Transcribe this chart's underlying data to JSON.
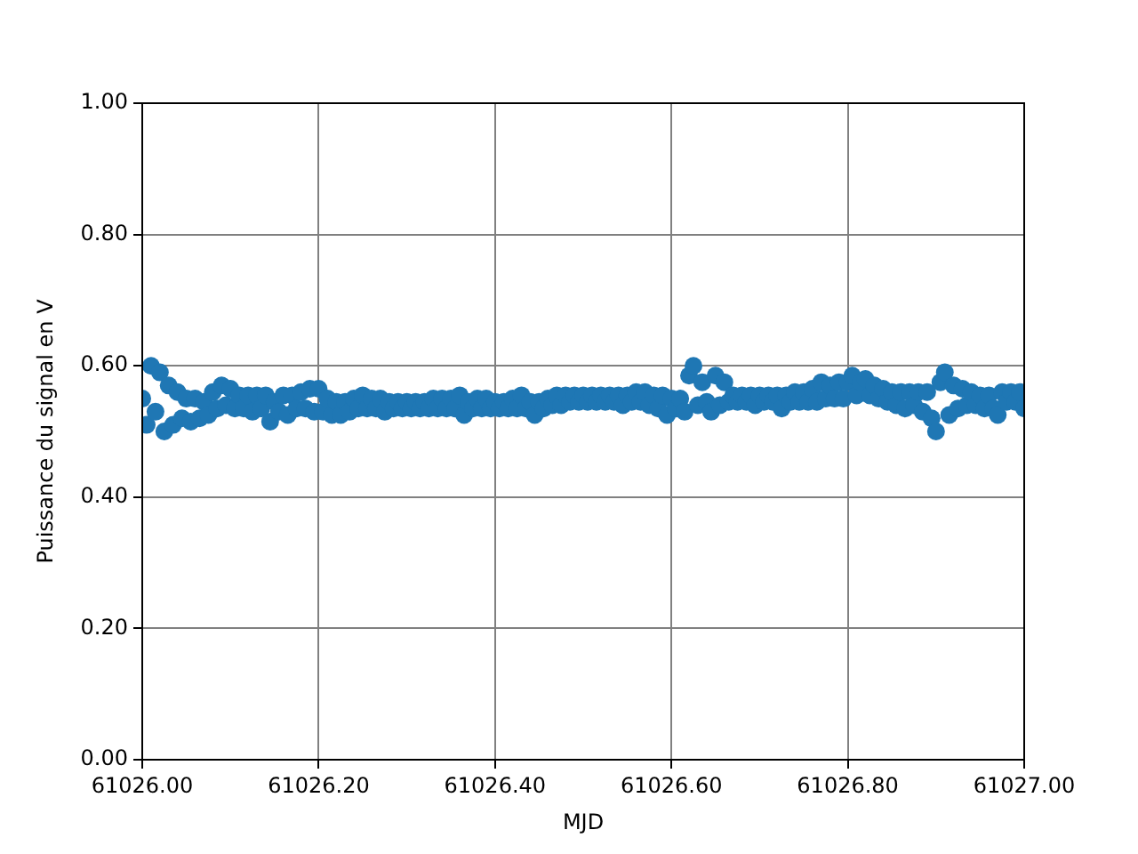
{
  "chart_data": {
    "type": "scatter",
    "xlabel": "MJD",
    "ylabel": "Puissance du signal en V",
    "x": [
      61026,
      61026.005,
      61026.01,
      61026.015,
      61026.02,
      61026.025,
      61026.03,
      61026.035,
      61026.04,
      61026.045,
      61026.05,
      61026.055,
      61026.06,
      61026.065,
      61026.07,
      61026.075,
      61026.08,
      61026.085,
      61026.09,
      61026.095,
      61026.1,
      61026.105,
      61026.11,
      61026.115,
      61026.12,
      61026.125,
      61026.13,
      61026.135,
      61026.14,
      61026.145,
      61026.15,
      61026.155,
      61026.16,
      61026.165,
      61026.17,
      61026.175,
      61026.18,
      61026.185,
      61026.19,
      61026.195,
      61026.2,
      61026.205,
      61026.21,
      61026.215,
      61026.22,
      61026.225,
      61026.23,
      61026.235,
      61026.24,
      61026.245,
      61026.25,
      61026.255,
      61026.26,
      61026.265,
      61026.27,
      61026.275,
      61026.28,
      61026.285,
      61026.29,
      61026.295,
      61026.3,
      61026.305,
      61026.31,
      61026.315,
      61026.32,
      61026.325,
      61026.33,
      61026.335,
      61026.34,
      61026.345,
      61026.35,
      61026.355,
      61026.36,
      61026.365,
      61026.37,
      61026.375,
      61026.38,
      61026.385,
      61026.39,
      61026.395,
      61026.4,
      61026.405,
      61026.41,
      61026.415,
      61026.42,
      61026.425,
      61026.43,
      61026.435,
      61026.44,
      61026.445,
      61026.45,
      61026.455,
      61026.46,
      61026.465,
      61026.47,
      61026.475,
      61026.48,
      61026.485,
      61026.49,
      61026.495,
      61026.5,
      61026.505,
      61026.51,
      61026.515,
      61026.52,
      61026.525,
      61026.53,
      61026.535,
      61026.54,
      61026.545,
      61026.55,
      61026.555,
      61026.56,
      61026.565,
      61026.57,
      61026.575,
      61026.58,
      61026.585,
      61026.59,
      61026.595,
      61026.6,
      61026.605,
      61026.61,
      61026.615,
      61026.62,
      61026.625,
      61026.63,
      61026.635,
      61026.64,
      61026.645,
      61026.65,
      61026.655,
      61026.66,
      61026.665,
      61026.67,
      61026.675,
      61026.68,
      61026.685,
      61026.69,
      61026.695,
      61026.7,
      61026.705,
      61026.71,
      61026.715,
      61026.72,
      61026.725,
      61026.73,
      61026.735,
      61026.74,
      61026.745,
      61026.75,
      61026.755,
      61026.76,
      61026.765,
      61026.77,
      61026.775,
      61026.78,
      61026.785,
      61026.79,
      61026.795,
      61026.8,
      61026.805,
      61026.81,
      61026.815,
      61026.82,
      61026.825,
      61026.83,
      61026.835,
      61026.84,
      61026.845,
      61026.85,
      61026.855,
      61026.86,
      61026.865,
      61026.87,
      61026.875,
      61026.88,
      61026.885,
      61026.89,
      61026.895,
      61026.9,
      61026.905,
      61026.91,
      61026.915,
      61026.92,
      61026.925,
      61026.93,
      61026.935,
      61026.94,
      61026.945,
      61026.95,
      61026.955,
      61026.96,
      61026.965,
      61026.97,
      61026.975,
      61026.98,
      61026.985,
      61026.99,
      61026.995,
      61027
    ],
    "series": [
      {
        "color": "#1f77b4",
        "values": [
          0.55,
          0.51,
          0.6,
          0.53,
          0.59,
          0.5,
          0.57,
          0.51,
          0.56,
          0.52,
          0.55,
          0.515,
          0.55,
          0.52,
          0.545,
          0.525,
          0.56,
          0.535,
          0.57,
          0.54,
          0.565,
          0.535,
          0.555,
          0.535,
          0.555,
          0.53,
          0.555,
          0.535,
          0.555,
          0.515,
          0.545,
          0.53,
          0.555,
          0.525,
          0.555,
          0.535,
          0.56,
          0.535,
          0.565,
          0.53,
          0.565,
          0.53,
          0.55,
          0.525,
          0.545,
          0.525,
          0.545,
          0.53,
          0.55,
          0.535,
          0.555,
          0.535,
          0.55,
          0.535,
          0.55,
          0.53,
          0.545,
          0.535,
          0.545,
          0.535,
          0.545,
          0.535,
          0.545,
          0.535,
          0.545,
          0.535,
          0.55,
          0.535,
          0.55,
          0.535,
          0.55,
          0.535,
          0.555,
          0.525,
          0.545,
          0.535,
          0.55,
          0.535,
          0.55,
          0.535,
          0.545,
          0.535,
          0.545,
          0.535,
          0.55,
          0.535,
          0.555,
          0.535,
          0.545,
          0.525,
          0.545,
          0.535,
          0.55,
          0.54,
          0.555,
          0.54,
          0.555,
          0.545,
          0.555,
          0.545,
          0.555,
          0.545,
          0.555,
          0.545,
          0.555,
          0.545,
          0.555,
          0.545,
          0.555,
          0.54,
          0.555,
          0.545,
          0.56,
          0.545,
          0.56,
          0.54,
          0.555,
          0.535,
          0.555,
          0.525,
          0.55,
          0.535,
          0.55,
          0.53,
          0.585,
          0.6,
          0.54,
          0.575,
          0.545,
          0.53,
          0.585,
          0.54,
          0.575,
          0.545,
          0.555,
          0.545,
          0.555,
          0.545,
          0.555,
          0.54,
          0.555,
          0.545,
          0.555,
          0.545,
          0.555,
          0.535,
          0.555,
          0.545,
          0.56,
          0.545,
          0.56,
          0.545,
          0.565,
          0.545,
          0.575,
          0.55,
          0.57,
          0.55,
          0.575,
          0.55,
          0.575,
          0.585,
          0.555,
          0.575,
          0.58,
          0.555,
          0.57,
          0.55,
          0.565,
          0.545,
          0.56,
          0.54,
          0.56,
          0.535,
          0.56,
          0.54,
          0.56,
          0.53,
          0.56,
          0.52,
          0.5,
          0.575,
          0.59,
          0.525,
          0.57,
          0.535,
          0.565,
          0.54,
          0.56,
          0.54,
          0.555,
          0.535,
          0.555,
          0.535,
          0.525,
          0.56,
          0.545,
          0.56,
          0.545,
          0.56,
          0.535
        ]
      }
    ],
    "xlim": [
      61026,
      61027
    ],
    "xticks": [
      {
        "value": 61026,
        "label": "61026.00"
      },
      {
        "value": 61026.2,
        "label": "61026.20"
      },
      {
        "value": 61026.4,
        "label": "61026.40"
      },
      {
        "value": 61026.6,
        "label": "61026.60"
      },
      {
        "value": 61026.8,
        "label": "61026.80"
      },
      {
        "value": 61027,
        "label": "61027.00"
      }
    ],
    "ylim": [
      0,
      1
    ],
    "yticks": [
      {
        "value": 0,
        "label": "0.00"
      },
      {
        "value": 0.2,
        "label": "0.20"
      },
      {
        "value": 0.4,
        "label": "0.40"
      },
      {
        "value": 0.6,
        "label": "0.60"
      },
      {
        "value": 0.8,
        "label": "0.80"
      },
      {
        "value": 1,
        "label": "1.00"
      }
    ],
    "grid": true,
    "marker": "circle",
    "legend": false
  }
}
